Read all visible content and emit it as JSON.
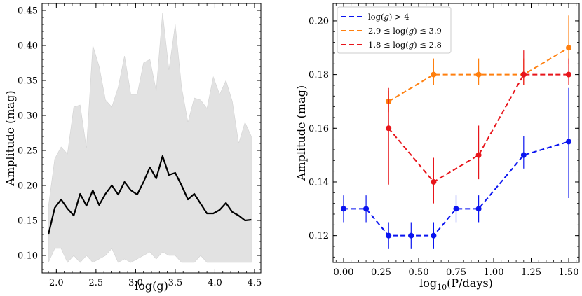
{
  "chart_data": [
    {
      "type": "line",
      "xlabel": "log(g)",
      "ylabel": "Amplitude (mag)",
      "xlim": [
        1.82,
        4.58
      ],
      "ylim": [
        0.075,
        0.46
      ],
      "xticks": [
        2.0,
        2.5,
        3.0,
        3.5,
        4.0,
        4.5
      ],
      "xtick_labels": [
        "2.0",
        "2.5",
        "3.0",
        "3.5",
        "4.0",
        "4.5"
      ],
      "yticks": [
        0.1,
        0.15,
        0.2,
        0.25,
        0.3,
        0.35,
        0.4,
        0.45
      ],
      "ytick_labels": [
        "0.10",
        "0.15",
        "0.20",
        "0.25",
        "0.30",
        "0.35",
        "0.40",
        "0.45"
      ],
      "band_color": "#e2e2e2",
      "line_color": "#000000",
      "x": [
        1.9,
        1.98,
        2.06,
        2.14,
        2.22,
        2.3,
        2.38,
        2.46,
        2.54,
        2.62,
        2.7,
        2.78,
        2.86,
        2.94,
        3.02,
        3.1,
        3.18,
        3.26,
        3.34,
        3.42,
        3.5,
        3.58,
        3.66,
        3.74,
        3.82,
        3.9,
        3.98,
        4.06,
        4.14,
        4.22,
        4.3,
        4.38,
        4.46
      ],
      "series": [
        {
          "name": "median",
          "values": [
            0.13,
            0.168,
            0.18,
            0.167,
            0.157,
            0.188,
            0.171,
            0.193,
            0.172,
            0.188,
            0.2,
            0.187,
            0.205,
            0.193,
            0.187,
            0.205,
            0.226,
            0.21,
            0.242,
            0.215,
            0.218,
            0.2,
            0.18,
            0.188,
            0.174,
            0.16,
            0.16,
            0.165,
            0.175,
            0.162,
            0.157,
            0.15,
            0.151
          ]
        },
        {
          "name": "upper",
          "values": [
            0.17,
            0.238,
            0.255,
            0.245,
            0.312,
            0.315,
            0.253,
            0.4,
            0.37,
            0.322,
            0.312,
            0.34,
            0.385,
            0.33,
            0.33,
            0.375,
            0.38,
            0.335,
            0.447,
            0.365,
            0.43,
            0.34,
            0.29,
            0.325,
            0.322,
            0.31,
            0.355,
            0.33,
            0.35,
            0.32,
            0.26,
            0.29,
            0.27
          ]
        },
        {
          "name": "lower",
          "values": [
            0.09,
            0.11,
            0.11,
            0.09,
            0.1,
            0.09,
            0.1,
            0.09,
            0.095,
            0.1,
            0.11,
            0.09,
            0.095,
            0.09,
            0.095,
            0.1,
            0.105,
            0.095,
            0.105,
            0.1,
            0.1,
            0.09,
            0.09,
            0.09,
            0.1,
            0.09,
            0.09,
            0.09,
            0.09,
            0.09,
            0.09,
            0.09,
            0.09
          ]
        }
      ]
    },
    {
      "type": "line",
      "xlabel_parts": [
        "log",
        "10",
        "(P/days)"
      ],
      "ylabel": "Amplitude (mag)",
      "xlim": [
        -0.07,
        1.57
      ],
      "ylim": [
        0.11,
        0.2065
      ],
      "xticks": [
        0.0,
        0.25,
        0.5,
        0.75,
        1.0,
        1.25,
        1.5
      ],
      "xtick_labels": [
        "0.00",
        "0.25",
        "0.50",
        "0.75",
        "1.00",
        "1.25",
        "1.50"
      ],
      "yticks": [
        0.12,
        0.14,
        0.16,
        0.18,
        0.2
      ],
      "ytick_labels": [
        "0.12",
        "0.14",
        "0.16",
        "0.18",
        "0.20"
      ],
      "legend_position": "top-left",
      "series": [
        {
          "name": "log(g) > 4",
          "legend_parts": [
            "log(",
            "g",
            ") > 4"
          ],
          "color": "#0a14f0",
          "x": [
            0.0,
            0.15,
            0.3,
            0.45,
            0.6,
            0.75,
            0.9,
            1.2,
            1.5
          ],
          "values": [
            0.13,
            0.13,
            0.12,
            0.12,
            0.12,
            0.13,
            0.13,
            0.15,
            0.155
          ],
          "err_low": [
            0.005,
            0.005,
            0.005,
            0.005,
            0.005,
            0.005,
            0.005,
            0.005,
            0.021
          ],
          "err_high": [
            0.005,
            0.005,
            0.005,
            0.005,
            0.005,
            0.005,
            0.005,
            0.007,
            0.02
          ]
        },
        {
          "name": "2.9 ≤ log(g) ≤ 3.9",
          "legend_parts": [
            "2.9 ≤ log(",
            "g",
            ") ≤ 3.9"
          ],
          "color": "#ff7f0e",
          "x": [
            0.3,
            0.6,
            0.9,
            1.2,
            1.5
          ],
          "values": [
            0.17,
            0.18,
            0.18,
            0.18,
            0.19
          ],
          "err_low": [
            0.004,
            0.004,
            0.004,
            0.004,
            0.006
          ],
          "err_high": [
            0.004,
            0.006,
            0.006,
            0.006,
            0.012
          ]
        },
        {
          "name": "1.8 ≤ log(g) ≤ 2.8",
          "legend_parts": [
            "1.8 ≤ log(",
            "g",
            ") ≤ 2.8"
          ],
          "color": "#e8151b",
          "x": [
            0.3,
            0.6,
            0.9,
            1.2,
            1.5
          ],
          "values": [
            0.16,
            0.14,
            0.15,
            0.18,
            0.18
          ],
          "err_low": [
            0.021,
            0.008,
            0.009,
            0.004,
            0.004
          ],
          "err_high": [
            0.015,
            0.009,
            0.011,
            0.009,
            0.006
          ]
        }
      ]
    }
  ]
}
